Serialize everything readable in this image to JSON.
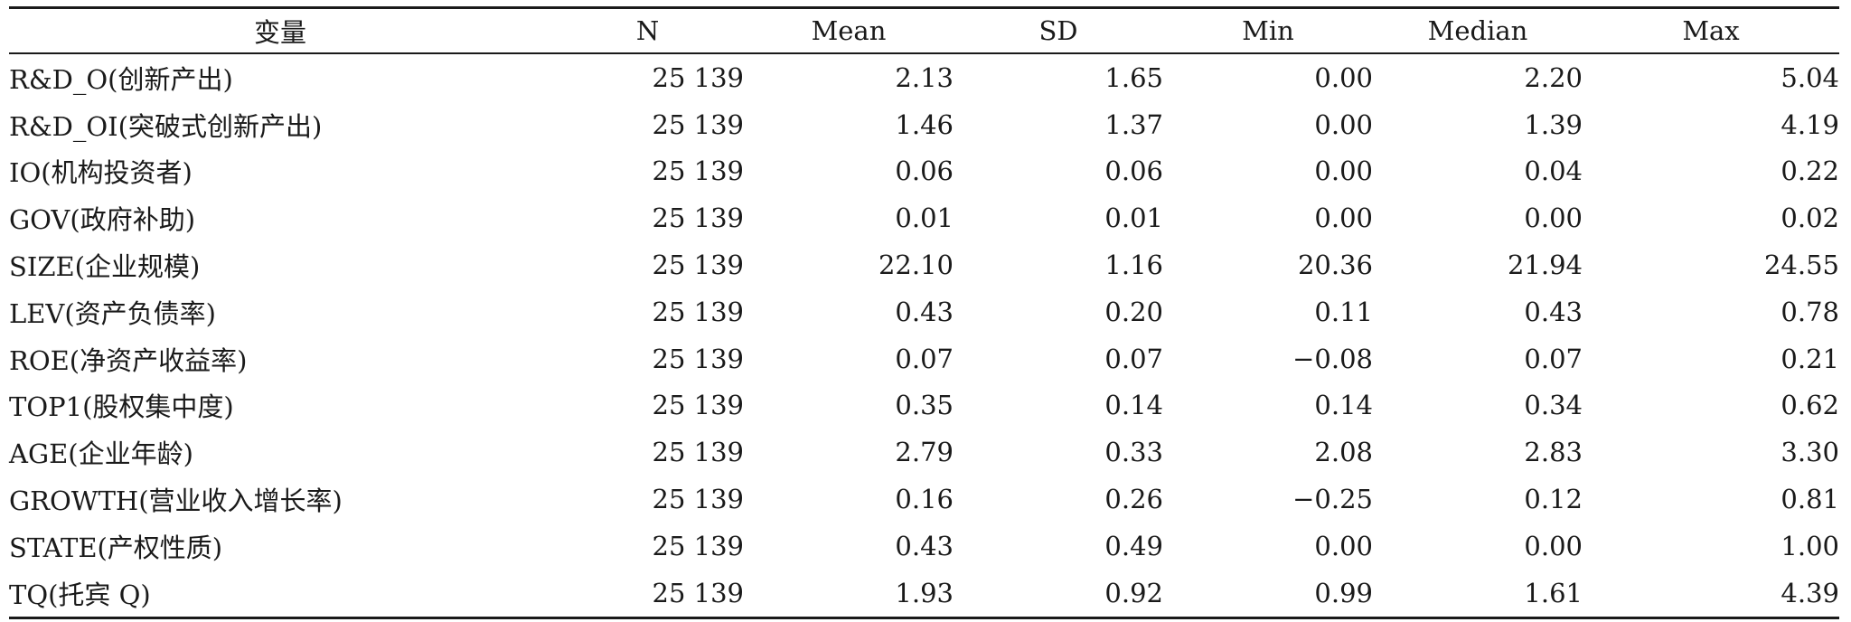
{
  "table": {
    "headers": [
      "变量",
      "N",
      "Mean",
      "SD",
      "Min",
      "Median",
      "Max"
    ],
    "rows": [
      [
        "R&D_O(创新产出)",
        "25 139",
        "2.13",
        "1.65",
        "0.00",
        "2.20",
        "5.04"
      ],
      [
        "R&D_OI(突破式创新产出)",
        "25 139",
        "1.46",
        "1.37",
        "0.00",
        "1.39",
        "4.19"
      ],
      [
        "IO(机构投资者)",
        "25 139",
        "0.06",
        "0.06",
        "0.00",
        "0.04",
        "0.22"
      ],
      [
        "GOV(政府补助)",
        "25 139",
        "0.01",
        "0.01",
        "0.00",
        "0.00",
        "0.02"
      ],
      [
        "SIZE(企业规模)",
        "25 139",
        "22.10",
        "1.16",
        "20.36",
        "21.94",
        "24.55"
      ],
      [
        "LEV(资产负债率)",
        "25 139",
        "0.43",
        "0.20",
        "0.11",
        "0.43",
        "0.78"
      ],
      [
        "ROE(净资产收益率)",
        "25 139",
        "0.07",
        "0.07",
        "−0.08",
        "0.07",
        "0.21"
      ],
      [
        "TOP1(股权集中度)",
        "25 139",
        "0.35",
        "0.14",
        "0.14",
        "0.34",
        "0.62"
      ],
      [
        "AGE(企业年龄)",
        "25 139",
        "2.79",
        "0.33",
        "2.08",
        "2.83",
        "3.30"
      ],
      [
        "GROWTH(营业收入增长率)",
        "25 139",
        "0.16",
        "0.26",
        "−0.25",
        "0.12",
        "0.81"
      ],
      [
        "STATE(产权性质)",
        "25 139",
        "0.43",
        "0.49",
        "0.00",
        "0.00",
        "1.00"
      ],
      [
        "TQ(托宾 Q)",
        "25 139",
        "1.93",
        "0.92",
        "0.99",
        "1.61",
        "4.39"
      ]
    ]
  }
}
